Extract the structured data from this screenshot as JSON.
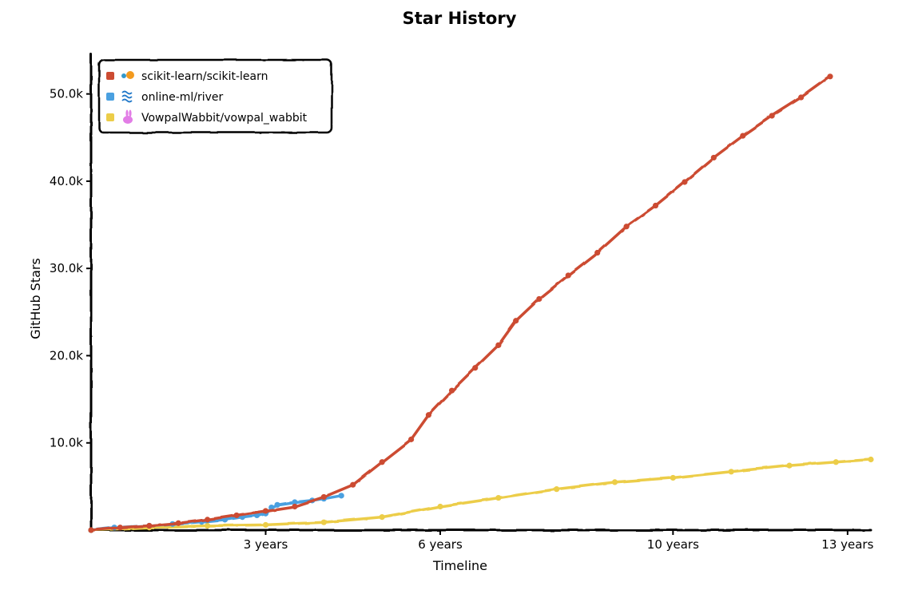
{
  "chart_data": {
    "type": "line",
    "title": "Star History",
    "xlabel": "Timeline",
    "ylabel": "GitHub Stars",
    "x_unit": "years",
    "xlim": [
      0,
      13.4
    ],
    "ylim": [
      0,
      52000
    ],
    "y_ticks": [
      10000,
      20000,
      30000,
      40000,
      50000
    ],
    "y_tick_labels": [
      "10.0k",
      "20.0k",
      "30.0k",
      "40.0k",
      "50.0k"
    ],
    "x_ticks": [
      3,
      6,
      10,
      13
    ],
    "x_tick_labels": [
      "3 years",
      "6 years",
      "10 years",
      "13 years"
    ],
    "legend_position": "top-left",
    "grid": false,
    "series": [
      {
        "name": "scikit-learn/scikit-learn",
        "color": "#cc4b32",
        "icon": "scikit-learn-logo-icon",
        "points": [
          [
            0,
            0
          ],
          [
            0.5,
            300
          ],
          [
            1.0,
            500
          ],
          [
            1.5,
            800
          ],
          [
            2.0,
            1200
          ],
          [
            2.5,
            1700
          ],
          [
            3.0,
            2200
          ],
          [
            3.5,
            2700
          ],
          [
            4.0,
            3800
          ],
          [
            4.5,
            5200
          ],
          [
            5.0,
            7800
          ],
          [
            5.5,
            10400
          ],
          [
            5.8,
            13200
          ],
          [
            6.2,
            16000
          ],
          [
            6.6,
            18600
          ],
          [
            7.0,
            21200
          ],
          [
            7.3,
            24000
          ],
          [
            7.7,
            26500
          ],
          [
            8.2,
            29200
          ],
          [
            8.7,
            31800
          ],
          [
            9.2,
            34800
          ],
          [
            9.7,
            37200
          ],
          [
            10.2,
            39900
          ],
          [
            10.7,
            42700
          ],
          [
            11.2,
            45200
          ],
          [
            11.7,
            47500
          ],
          [
            12.2,
            49600
          ],
          [
            12.7,
            52000
          ]
        ]
      },
      {
        "name": "online-ml/river",
        "color": "#4aa0e0",
        "icon": "river-waves-icon",
        "points": [
          [
            0,
            0
          ],
          [
            0.4,
            300
          ],
          [
            1.0,
            500
          ],
          [
            1.4,
            700
          ],
          [
            1.9,
            950
          ],
          [
            2.3,
            1200
          ],
          [
            2.6,
            1500
          ],
          [
            2.85,
            1700
          ],
          [
            3.0,
            1900
          ],
          [
            3.1,
            2600
          ],
          [
            3.2,
            2900
          ],
          [
            3.5,
            3200
          ],
          [
            3.8,
            3400
          ],
          [
            4.0,
            3600
          ],
          [
            4.3,
            3950
          ]
        ]
      },
      {
        "name": "VowpalWabbit/vowpal_wabbit",
        "color": "#eccd48",
        "icon": "rabbit-icon",
        "points": [
          [
            0,
            0
          ],
          [
            1.0,
            300
          ],
          [
            2.0,
            500
          ],
          [
            3.0,
            600
          ],
          [
            4.0,
            900
          ],
          [
            5.0,
            1500
          ],
          [
            6.0,
            2700
          ],
          [
            7.0,
            3700
          ],
          [
            8.0,
            4700
          ],
          [
            9.0,
            5500
          ],
          [
            10.0,
            6000
          ],
          [
            11.0,
            6700
          ],
          [
            12.0,
            7400
          ],
          [
            12.8,
            7800
          ],
          [
            13.4,
            8100
          ]
        ]
      }
    ]
  }
}
